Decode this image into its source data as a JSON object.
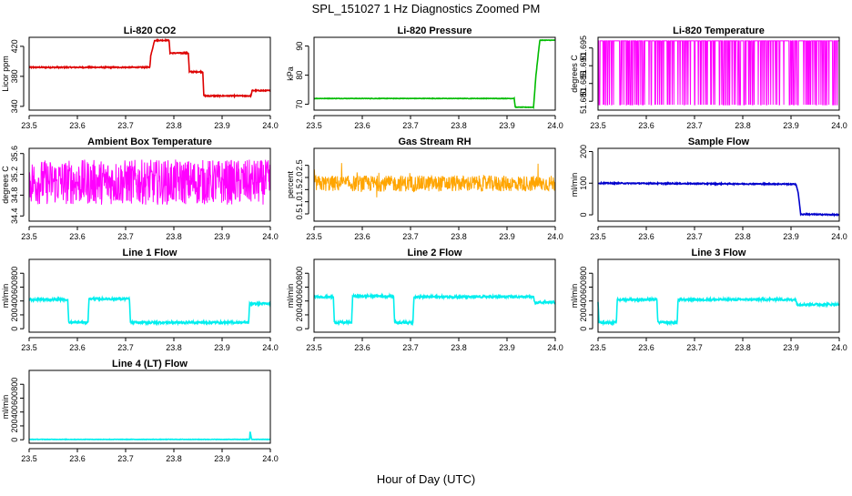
{
  "page": {
    "title": "SPL_151027  1 Hz Diagnostics Zoomed PM",
    "xlabel": "Hour of Day (UTC)"
  },
  "chart_data": [
    {
      "type": "line",
      "title": "Li-820 CO2",
      "ylabel": "Licor ppm",
      "xlim": [
        23.5,
        24.0
      ],
      "xticks": [
        "23.5",
        "23.6",
        "23.7",
        "23.8",
        "23.9",
        "24.0"
      ],
      "ylim": [
        335,
        432
      ],
      "yticks": [
        "340",
        "380",
        "420"
      ],
      "yticks_values": [
        340,
        380,
        420
      ],
      "color": "#dd0000",
      "noise": "low",
      "series": [
        {
          "x": [
            23.5,
            23.75,
            23.752,
            23.76,
            23.79,
            23.792,
            23.83,
            23.832,
            23.86,
            23.862,
            23.96,
            23.962,
            24.0
          ],
          "y": [
            392,
            392,
            407,
            428,
            428,
            411,
            411,
            386,
            386,
            354,
            354,
            361,
            361
          ]
        }
      ]
    },
    {
      "type": "line",
      "title": "Li-820 Pressure",
      "ylabel": "kPa",
      "xlim": [
        23.5,
        24.0
      ],
      "xticks": [
        "23.5",
        "23.6",
        "23.7",
        "23.8",
        "23.9",
        "24.0"
      ],
      "ylim": [
        68,
        93
      ],
      "yticks": [
        "70",
        "80",
        "90"
      ],
      "yticks_values": [
        70,
        80,
        90
      ],
      "color": "#00bb00",
      "noise": "tiny",
      "series": [
        {
          "x": [
            23.5,
            23.915,
            23.917,
            23.955,
            23.96,
            23.968,
            24.0
          ],
          "y": [
            72,
            72,
            69,
            69,
            80,
            92,
            92
          ]
        }
      ]
    },
    {
      "type": "line",
      "title": "Li-820 Temperature",
      "ylabel": "degrees C",
      "xlim": [
        23.5,
        24.0
      ],
      "xticks": [
        "23.5",
        "23.6",
        "23.7",
        "23.8",
        "23.9",
        "24.0"
      ],
      "ylim": [
        51.6775,
        51.698
      ],
      "yticks": [
        "51.680",
        "51.685",
        "51.690",
        "51.695"
      ],
      "yticks_values": [
        51.68,
        51.685,
        51.69,
        51.695
      ],
      "color": "#ff00ff",
      "noise": "toggle",
      "series": [
        {
          "x": [
            23.5,
            24.0
          ],
          "y": [
            51.679,
            51.697
          ]
        }
      ]
    },
    {
      "type": "line",
      "title": "Ambient Box Temperature",
      "ylabel": "degrees C",
      "xlim": [
        23.5,
        24.0
      ],
      "xticks": [
        "23.5",
        "23.6",
        "23.7",
        "23.8",
        "23.9",
        "24.0"
      ],
      "ylim": [
        34.3,
        35.7
      ],
      "yticks": [
        "34.4",
        "34.8",
        "35.2",
        "35.6"
      ],
      "yticks_values": [
        34.4,
        34.8,
        35.2,
        35.6
      ],
      "color": "#ff00ff",
      "noise": "dense",
      "series": [
        {
          "x": [
            23.5,
            24.0
          ],
          "y": [
            35.05,
            35.05
          ]
        }
      ]
    },
    {
      "type": "line",
      "title": "Gas Stream RH",
      "ylabel": "percent",
      "xlim": [
        23.5,
        24.0
      ],
      "xticks": [
        "23.5",
        "23.6",
        "23.7",
        "23.8",
        "23.9",
        "24.0"
      ],
      "ylim": [
        0.2,
        3.2
      ],
      "yticks": [
        "0.5",
        "1.0",
        "1.5",
        "2.0",
        "2.5"
      ],
      "yticks_values": [
        0.5,
        1.0,
        1.5,
        2.0,
        2.5
      ],
      "color": "#ffa500",
      "noise": "rh",
      "series": [
        {
          "x": [
            23.5,
            24.0
          ],
          "y": [
            1.75,
            1.75
          ]
        }
      ]
    },
    {
      "type": "line",
      "title": "Sample Flow",
      "ylabel": "ml/min",
      "xlim": [
        23.5,
        24.0
      ],
      "xticks": [
        "23.5",
        "23.6",
        "23.7",
        "23.8",
        "23.9",
        "24.0"
      ],
      "ylim": [
        -20,
        210
      ],
      "yticks": [
        "0",
        "100",
        "200"
      ],
      "yticks_values": [
        0,
        100,
        200
      ],
      "color": "#0000cc",
      "noise": "low",
      "series": [
        {
          "x": [
            23.5,
            23.91,
            23.915,
            23.92,
            24.0
          ],
          "y": [
            100,
            97,
            70,
            2,
            0
          ]
        }
      ]
    },
    {
      "type": "line",
      "title": "Line 1 Flow",
      "ylabel": "ml/min",
      "xlim": [
        23.5,
        24.0
      ],
      "xticks": [
        "23.5",
        "23.6",
        "23.7",
        "23.8",
        "23.9",
        "24.0"
      ],
      "ylim": [
        -50,
        1000
      ],
      "yticks": [
        "0",
        "200",
        "400",
        "600",
        "800"
      ],
      "yticks_values": [
        0,
        200,
        400,
        600,
        800
      ],
      "color": "#00eeee",
      "noise": "flow",
      "series": [
        {
          "x": [
            23.5,
            23.58,
            23.582,
            23.622,
            23.624,
            23.708,
            23.71,
            23.955,
            23.957,
            24.0
          ],
          "y": [
            420,
            420,
            90,
            90,
            430,
            430,
            90,
            90,
            360,
            360
          ]
        }
      ]
    },
    {
      "type": "line",
      "title": "Line 2 Flow",
      "ylabel": "ml/min",
      "xlim": [
        23.5,
        24.0
      ],
      "xticks": [
        "23.5",
        "23.6",
        "23.7",
        "23.8",
        "23.9",
        "24.0"
      ],
      "ylim": [
        -50,
        1000
      ],
      "yticks": [
        "0",
        "200",
        "400",
        "600",
        "800"
      ],
      "yticks_values": [
        0,
        200,
        400,
        600,
        800
      ],
      "color": "#00eeee",
      "noise": "flow",
      "series": [
        {
          "x": [
            23.5,
            23.54,
            23.542,
            23.578,
            23.58,
            23.665,
            23.667,
            23.705,
            23.707,
            23.955,
            23.957,
            24.0
          ],
          "y": [
            460,
            460,
            90,
            90,
            470,
            470,
            90,
            90,
            460,
            460,
            380,
            380
          ]
        }
      ]
    },
    {
      "type": "line",
      "title": "Line 3 Flow",
      "ylabel": "ml/min",
      "xlim": [
        23.5,
        24.0
      ],
      "xticks": [
        "23.5",
        "23.6",
        "23.7",
        "23.8",
        "23.9",
        "24.0"
      ],
      "ylim": [
        -50,
        1000
      ],
      "yticks": [
        "0",
        "200",
        "400",
        "600",
        "800"
      ],
      "yticks_values": [
        0,
        200,
        400,
        600,
        800
      ],
      "color": "#00eeee",
      "noise": "flow",
      "series": [
        {
          "x": [
            23.5,
            23.502,
            23.538,
            23.54,
            23.622,
            23.624,
            23.664,
            23.666,
            23.91,
            23.912,
            24.0
          ],
          "y": [
            400,
            90,
            90,
            420,
            420,
            90,
            90,
            420,
            420,
            350,
            350
          ]
        }
      ]
    },
    {
      "type": "line",
      "title": "Line 4 (LT) Flow",
      "ylabel": "ml/min",
      "xlim": [
        23.5,
        24.0
      ],
      "xticks": [
        "23.5",
        "23.6",
        "23.7",
        "23.8",
        "23.9",
        "24.0"
      ],
      "ylim": [
        -50,
        1000
      ],
      "yticks": [
        "0",
        "200",
        "400",
        "600",
        "800"
      ],
      "yticks_values": [
        0,
        200,
        400,
        600,
        800
      ],
      "color": "#00eeee",
      "noise": "tiny",
      "series": [
        {
          "x": [
            23.5,
            23.957,
            23.958,
            23.961,
            23.962,
            24.0
          ],
          "y": [
            5,
            5,
            130,
            5,
            5,
            5
          ]
        }
      ]
    }
  ]
}
